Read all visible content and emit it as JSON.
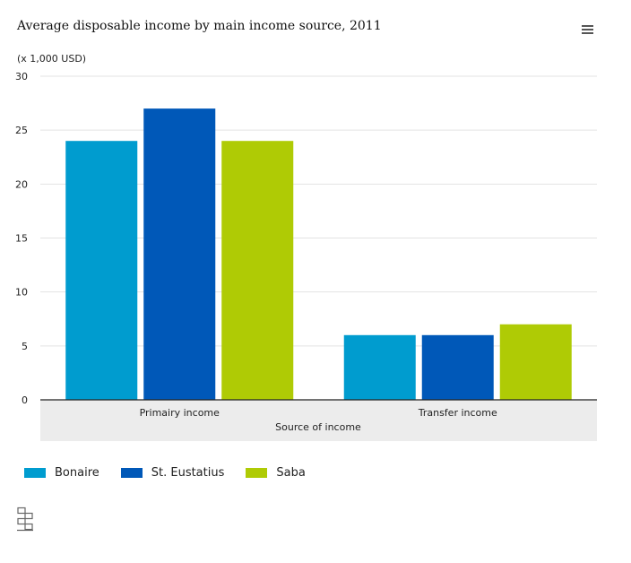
{
  "chart_data": {
    "type": "bar",
    "title": "Average disposable income by main income source, 2011",
    "ylabel": "(x 1,000 USD)",
    "xlabel": "Source of income",
    "categories": [
      "Primairy income",
      "Transfer income"
    ],
    "ylim": [
      0,
      30
    ],
    "yticks": [
      0,
      5,
      10,
      15,
      20,
      25,
      30
    ],
    "grid": true,
    "legend_position": "bottom-left",
    "series": [
      {
        "name": "Bonaire",
        "color": "#009ccf",
        "values": [
          24,
          6
        ]
      },
      {
        "name": "St. Eustatius",
        "color": "#0058b8",
        "values": [
          27,
          6
        ]
      },
      {
        "name": "Saba",
        "color": "#afcb05",
        "values": [
          24,
          7
        ]
      }
    ]
  },
  "icons": {
    "menu": "hamburger-menu-icon",
    "logo": "cbs-logo-icon"
  }
}
